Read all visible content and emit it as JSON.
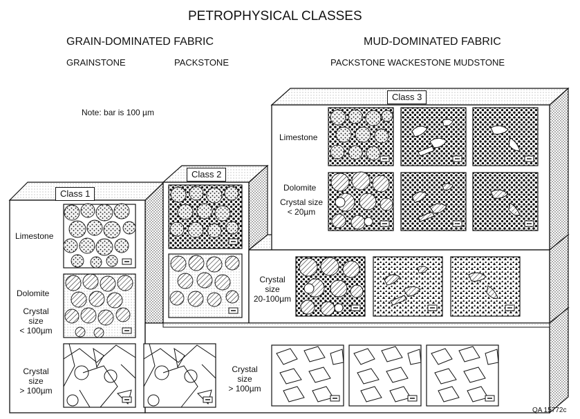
{
  "title": "PETROPHYSICAL CLASSES",
  "fabric": {
    "grain_dominated": "GRAIN-DOMINATED FABRIC",
    "mud_dominated": "MUD-DOMINATED FABRIC"
  },
  "rock_types": {
    "grainstone": "GRAINSTONE",
    "packstone_grain": "PACKSTONE",
    "mud_types": "PACKSTONE WACKESTONE MUDSTONE"
  },
  "note": "Note: bar is 100 µm",
  "classes": {
    "class1": "Class 1",
    "class2": "Class 2",
    "class3": "Class 3"
  },
  "row_labels": {
    "limestone_1": "Limestone",
    "dolomite_1": "Dolomite",
    "crystal_lt100": [
      "Crystal",
      "size",
      "< 100µm"
    ],
    "crystal_gt100_a": [
      "Crystal",
      "size",
      "> 100µm"
    ],
    "limestone_3": "Limestone",
    "dolomite_3": "Dolomite",
    "crystal_lt20": [
      "Crystal size",
      "< 20µm"
    ],
    "crystal_20_100": [
      "Crystal",
      "size",
      "20-100µm"
    ],
    "crystal_gt100_b": [
      "Crystal",
      "size",
      "> 100µm"
    ]
  },
  "figure_id": "QA 15772c"
}
